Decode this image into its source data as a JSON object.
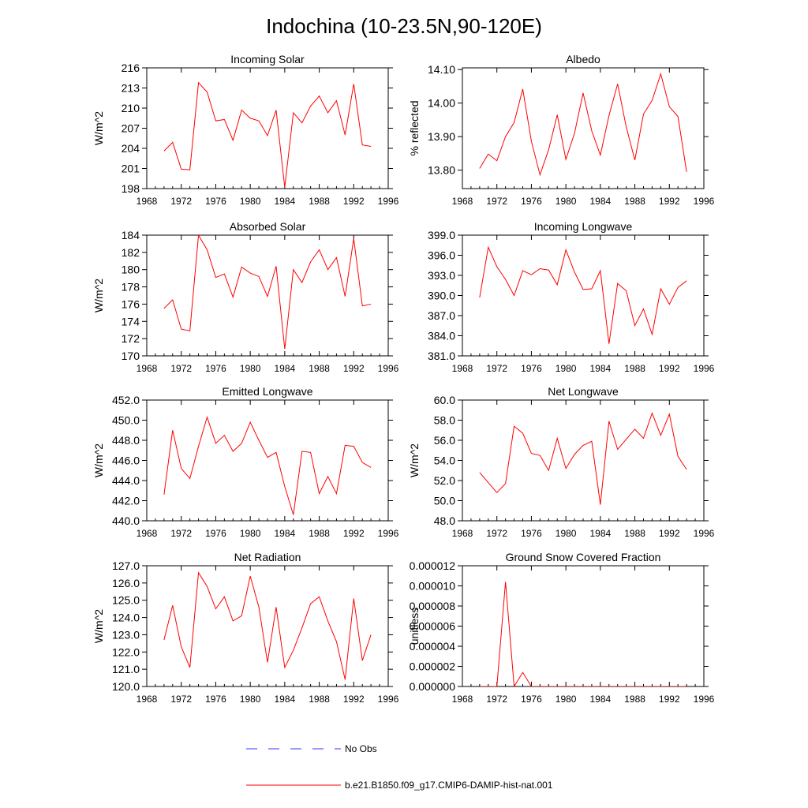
{
  "figure": {
    "title": "Indochina (10-23.5N,90-120E)",
    "colors": {
      "model": "#ff0000",
      "obs": "#3a3aff",
      "axis": "#000000"
    },
    "legend": {
      "obs_label": "No Obs",
      "model_label": "b.e21.B1850.f09_g17.CMIP6-DAMIP-hist-nat.001"
    }
  },
  "chart_data": [
    {
      "type": "line",
      "title": "Incoming Solar",
      "ylabel": "W/m^2",
      "xlim": [
        1968,
        1996
      ],
      "xticks": [
        1968,
        1972,
        1976,
        1980,
        1984,
        1988,
        1992,
        1996
      ],
      "ylim": [
        198,
        216
      ],
      "yticks": [
        "198",
        "201",
        "204",
        "207",
        "210",
        "213",
        "216"
      ],
      "x": [
        1970,
        1971,
        1972,
        1973,
        1974,
        1975,
        1976,
        1977,
        1978,
        1979,
        1980,
        1981,
        1982,
        1983,
        1984,
        1985,
        1986,
        1987,
        1988,
        1989,
        1990,
        1991,
        1992,
        1993,
        1994
      ],
      "series": [
        {
          "name": "b.e21.B1850.f09_g17.CMIP6-DAMIP-hist-nat.001",
          "values": [
            203.6,
            204.9,
            200.9,
            200.8,
            213.8,
            212.4,
            208.1,
            208.3,
            205.2,
            209.7,
            208.5,
            208.1,
            205.9,
            209.7,
            198.2,
            209.3,
            207.8,
            210.3,
            211.8,
            209.3,
            211.1,
            206.0,
            213.6,
            204.5,
            204.3
          ]
        }
      ]
    },
    {
      "type": "line",
      "title": "Albedo",
      "ylabel": "% reflected",
      "xlim": [
        1968,
        1996
      ],
      "xticks": [
        1968,
        1972,
        1976,
        1980,
        1984,
        1988,
        1992,
        1996
      ],
      "ylim": [
        13.745,
        14.105
      ],
      "yticks": [
        "13.80",
        "13.90",
        "14.00",
        "14.10"
      ],
      "x": [
        1970,
        1971,
        1972,
        1973,
        1974,
        1975,
        1976,
        1977,
        1978,
        1979,
        1980,
        1981,
        1982,
        1983,
        1984,
        1985,
        1986,
        1987,
        1988,
        1989,
        1990,
        1991,
        1992,
        1993,
        1994
      ],
      "series": [
        {
          "name": "b.e21.B1850.f09_g17.CMIP6-DAMIP-hist-nat.001",
          "values": [
            13.805,
            13.848,
            13.828,
            13.9,
            13.942,
            14.042,
            13.886,
            13.786,
            13.861,
            13.965,
            13.832,
            13.91,
            14.03,
            13.917,
            13.845,
            13.963,
            14.057,
            13.929,
            13.83,
            13.967,
            14.008,
            14.087,
            13.989,
            13.96,
            13.795
          ]
        }
      ]
    },
    {
      "type": "line",
      "title": "Absorbed Solar",
      "ylabel": "W/m^2",
      "xlim": [
        1968,
        1996
      ],
      "xticks": [
        1968,
        1972,
        1976,
        1980,
        1984,
        1988,
        1992,
        1996
      ],
      "ylim": [
        170,
        184
      ],
      "yticks": [
        "170",
        "172",
        "174",
        "176",
        "178",
        "180",
        "182",
        "184"
      ],
      "x": [
        1970,
        1971,
        1972,
        1973,
        1974,
        1975,
        1976,
        1977,
        1978,
        1979,
        1980,
        1981,
        1982,
        1983,
        1984,
        1985,
        1986,
        1987,
        1988,
        1989,
        1990,
        1991,
        1992,
        1993,
        1994
      ],
      "series": [
        {
          "name": "b.e21.B1850.f09_g17.CMIP6-DAMIP-hist-nat.001",
          "values": [
            175.5,
            176.5,
            173.1,
            172.9,
            184.0,
            182.3,
            179.1,
            179.5,
            176.8,
            180.3,
            179.6,
            179.2,
            176.9,
            180.4,
            170.8,
            180.0,
            178.5,
            180.9,
            182.3,
            180.0,
            181.4,
            176.9,
            183.6,
            175.8,
            176.0
          ]
        }
      ]
    },
    {
      "type": "line",
      "title": "Incoming Longwave",
      "ylabel": "",
      "xlim": [
        1968,
        1996
      ],
      "xticks": [
        1968,
        1972,
        1976,
        1980,
        1984,
        1988,
        1992,
        1996
      ],
      "ylim": [
        381,
        399
      ],
      "yticks": [
        "381.0",
        "384.0",
        "387.0",
        "390.0",
        "393.0",
        "396.0",
        "399.0"
      ],
      "x": [
        1970,
        1971,
        1972,
        1973,
        1974,
        1975,
        1976,
        1977,
        1978,
        1979,
        1980,
        1981,
        1982,
        1983,
        1984,
        1985,
        1986,
        1987,
        1988,
        1989,
        1990,
        1991,
        1992,
        1993,
        1994
      ],
      "series": [
        {
          "name": "b.e21.B1850.f09_g17.CMIP6-DAMIP-hist-nat.001",
          "values": [
            389.7,
            397.2,
            394.3,
            392.4,
            390.0,
            393.7,
            393.1,
            394.0,
            393.8,
            391.6,
            396.8,
            393.5,
            390.9,
            391.0,
            393.7,
            382.8,
            391.8,
            390.7,
            385.5,
            388.0,
            384.2,
            391.0,
            388.7,
            391.2,
            392.2
          ]
        }
      ]
    },
    {
      "type": "line",
      "title": "Emitted Longwave",
      "ylabel": "W/m^2",
      "xlim": [
        1968,
        1996
      ],
      "xticks": [
        1968,
        1972,
        1976,
        1980,
        1984,
        1988,
        1992,
        1996
      ],
      "ylim": [
        440,
        452
      ],
      "yticks": [
        "440.0",
        "442.0",
        "444.0",
        "446.0",
        "448.0",
        "450.0",
        "452.0"
      ],
      "x": [
        1970,
        1971,
        1972,
        1973,
        1974,
        1975,
        1976,
        1977,
        1978,
        1979,
        1980,
        1981,
        1982,
        1983,
        1984,
        1985,
        1986,
        1987,
        1988,
        1989,
        1990,
        1991,
        1992,
        1993,
        1994
      ],
      "series": [
        {
          "name": "b.e21.B1850.f09_g17.CMIP6-DAMIP-hist-nat.001",
          "values": [
            442.6,
            449.0,
            445.2,
            444.2,
            447.4,
            450.3,
            447.7,
            448.5,
            446.9,
            447.7,
            449.8,
            448.0,
            446.3,
            446.8,
            443.4,
            440.6,
            446.9,
            446.8,
            442.7,
            444.4,
            442.7,
            447.5,
            447.4,
            445.8,
            445.3
          ]
        }
      ]
    },
    {
      "type": "line",
      "title": "Net Longwave",
      "ylabel": "W/m^2",
      "xlim": [
        1968,
        1996
      ],
      "xticks": [
        1968,
        1972,
        1976,
        1980,
        1984,
        1988,
        1992,
        1996
      ],
      "ylim": [
        48,
        60
      ],
      "yticks": [
        "48.0",
        "50.0",
        "52.0",
        "54.0",
        "56.0",
        "58.0",
        "60.0"
      ],
      "x": [
        1970,
        1971,
        1972,
        1973,
        1974,
        1975,
        1976,
        1977,
        1978,
        1979,
        1980,
        1981,
        1982,
        1983,
        1984,
        1985,
        1986,
        1987,
        1988,
        1989,
        1990,
        1991,
        1992,
        1993,
        1994
      ],
      "series": [
        {
          "name": "b.e21.B1850.f09_g17.CMIP6-DAMIP-hist-nat.001",
          "values": [
            52.8,
            51.8,
            50.8,
            51.7,
            57.4,
            56.7,
            54.7,
            54.5,
            53.0,
            56.2,
            53.2,
            54.6,
            55.5,
            55.9,
            49.6,
            57.9,
            55.1,
            56.1,
            57.1,
            56.2,
            58.7,
            56.5,
            58.6,
            54.4,
            53.1
          ]
        }
      ]
    },
    {
      "type": "line",
      "title": "Net Radiation",
      "ylabel": "W/m^2",
      "xlim": [
        1968,
        1996
      ],
      "xticks": [
        1968,
        1972,
        1976,
        1980,
        1984,
        1988,
        1992,
        1996
      ],
      "ylim": [
        120,
        127
      ],
      "yticks": [
        "120.0",
        "121.0",
        "122.0",
        "123.0",
        "124.0",
        "125.0",
        "126.0",
        "127.0"
      ],
      "x": [
        1970,
        1971,
        1972,
        1973,
        1974,
        1975,
        1976,
        1977,
        1978,
        1979,
        1980,
        1981,
        1982,
        1983,
        1984,
        1985,
        1986,
        1987,
        1988,
        1989,
        1990,
        1991,
        1992,
        1993,
        1994
      ],
      "series": [
        {
          "name": "b.e21.B1850.f09_g17.CMIP6-DAMIP-hist-nat.001",
          "values": [
            122.7,
            124.7,
            122.3,
            121.1,
            126.6,
            125.8,
            124.5,
            125.2,
            123.8,
            124.1,
            126.4,
            124.6,
            121.4,
            124.6,
            121.1,
            122.1,
            123.4,
            124.8,
            125.2,
            123.8,
            122.6,
            120.4,
            125.1,
            121.5,
            123.0
          ]
        }
      ]
    },
    {
      "type": "line",
      "title": "Ground Snow Covered Fraction",
      "ylabel": "unitless",
      "xlim": [
        1968,
        1996
      ],
      "xticks": [
        1968,
        1972,
        1976,
        1980,
        1984,
        1988,
        1992,
        1996
      ],
      "ylim": [
        0,
        1.2e-05
      ],
      "yticks": [
        "0.000000",
        "0.000002",
        "0.000004",
        "0.000006",
        "0.000008",
        "0.000010",
        "0.000012"
      ],
      "x": [
        1970,
        1971,
        1972,
        1973,
        1974,
        1975,
        1976,
        1977,
        1978,
        1979,
        1980,
        1981,
        1982,
        1983,
        1984,
        1985,
        1986,
        1987,
        1988,
        1989,
        1990,
        1991,
        1992,
        1993,
        1994
      ],
      "series": [
        {
          "name": "b.e21.B1850.f09_g17.CMIP6-DAMIP-hist-nat.001",
          "values": [
            0,
            0,
            0,
            1.04e-05,
            0,
            1.4e-06,
            0,
            0,
            0,
            0,
            0,
            0,
            0,
            0,
            0,
            0,
            0,
            0,
            0,
            0,
            0,
            0,
            0,
            0,
            0
          ]
        }
      ]
    }
  ]
}
